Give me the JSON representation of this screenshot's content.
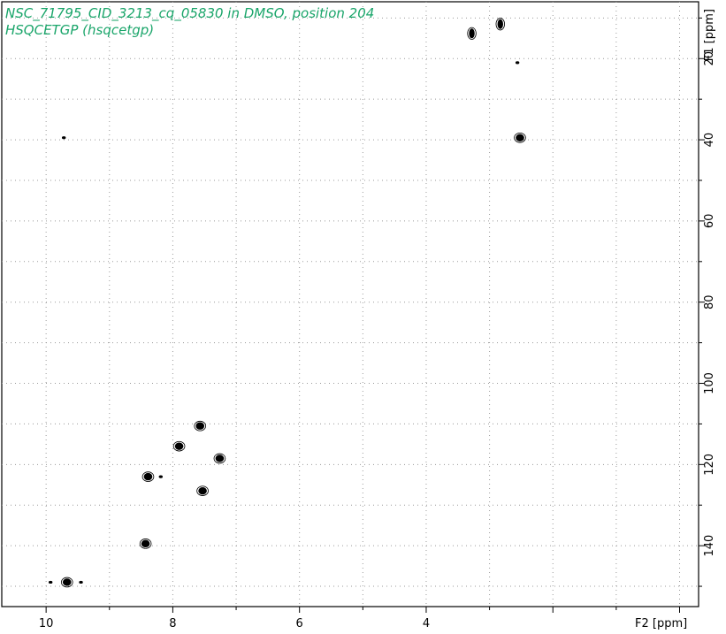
{
  "header": {
    "title_line1": "NSC_71795_CID_3213_cq_05830 in DMSO, position 204",
    "title_line2": "HSQCETGP (hsqcetgp)"
  },
  "colors": {
    "title": "#1aa56a",
    "contour": "#000000",
    "grid": "#9a9a9a"
  },
  "chart_data": {
    "type": "scatter",
    "subtype": "2D NMR HSQC contour plot",
    "title": "NSC_71795_CID_3213_cq_05830 in DMSO, position 204",
    "subtitle": "HSQCETGP (hsqcetgp)",
    "xlabel": "F2 [ppm]",
    "ylabel": "F1 [ppm]",
    "xlim": [
      10.7,
      -0.3
    ],
    "ylim": [
      6,
      155
    ],
    "x_reversed": true,
    "y_reversed": true,
    "x_ticks": [
      10,
      8,
      6,
      4
    ],
    "x_tick_labels": [
      "10",
      "8",
      "6",
      "4"
    ],
    "y_ticks": [
      20,
      40,
      60,
      80,
      100,
      120,
      140
    ],
    "y_tick_labels": [
      "20",
      "40",
      "60",
      "80",
      "100",
      "120",
      "140"
    ],
    "grid": true,
    "peaks": [
      {
        "x": 3.28,
        "y": 13.8,
        "size": "medium"
      },
      {
        "x": 2.83,
        "y": 11.5,
        "size": "medium"
      },
      {
        "x": 2.56,
        "y": 21.0,
        "size": "small"
      },
      {
        "x": 2.52,
        "y": 39.5,
        "size": "large"
      },
      {
        "x": 9.72,
        "y": 39.5,
        "size": "small"
      },
      {
        "x": 7.57,
        "y": 110.5,
        "size": "large"
      },
      {
        "x": 7.9,
        "y": 115.5,
        "size": "large"
      },
      {
        "x": 7.26,
        "y": 118.5,
        "size": "large"
      },
      {
        "x": 8.39,
        "y": 123.0,
        "size": "large"
      },
      {
        "x": 8.19,
        "y": 123.0,
        "size": "small"
      },
      {
        "x": 7.53,
        "y": 126.5,
        "size": "large"
      },
      {
        "x": 8.43,
        "y": 139.5,
        "size": "large"
      },
      {
        "x": 9.67,
        "y": 149.0,
        "size": "large"
      },
      {
        "x": 9.93,
        "y": 149.0,
        "size": "small"
      },
      {
        "x": 9.45,
        "y": 149.0,
        "size": "small"
      }
    ]
  }
}
